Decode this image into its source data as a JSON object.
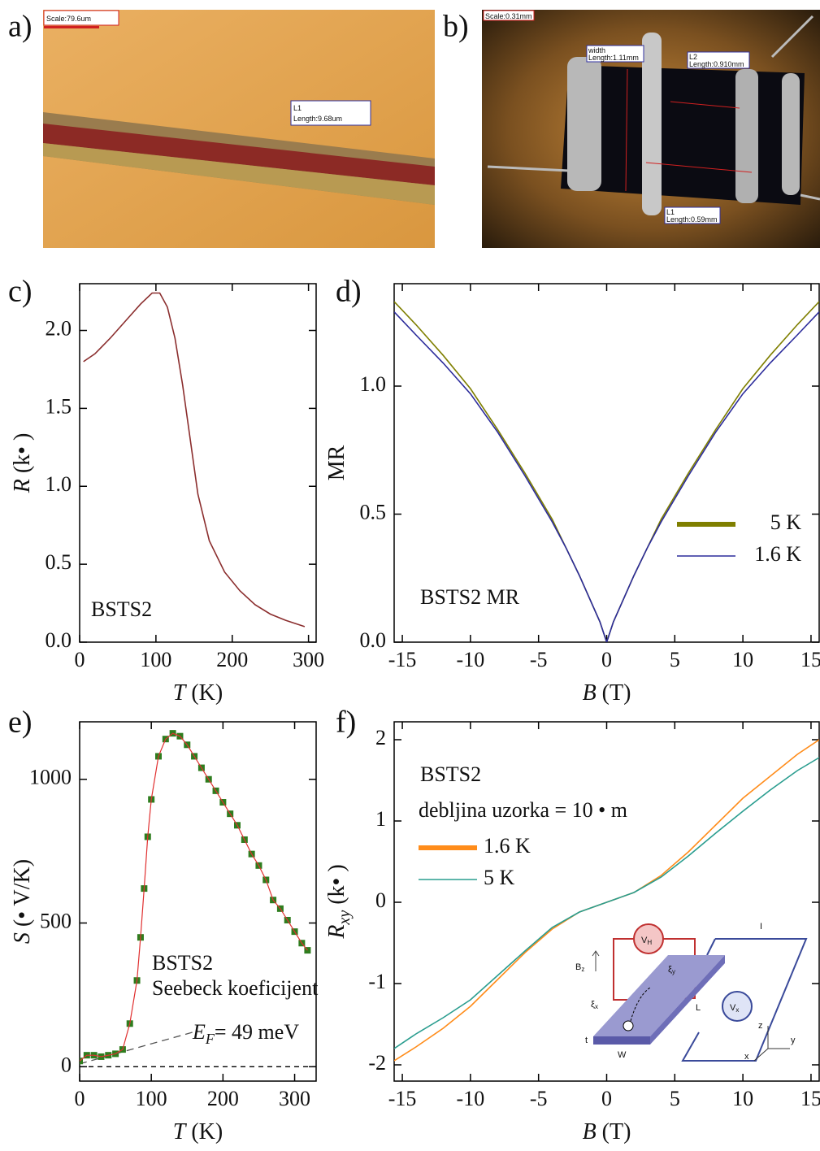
{
  "photos": [
    {
      "panel_label": "a)",
      "labels": [
        "Scale:79.6um",
        "L1",
        "Length:9.68um"
      ]
    },
    {
      "panel_label": "b)",
      "labels": [
        "Scale:0.31mm",
        "width",
        "Length:1.11mm",
        "L2",
        "Length:0.910mm",
        "L1",
        "Length:0.59mm"
      ]
    }
  ],
  "chart_data": [
    {
      "type": "line",
      "panel_label": "c)",
      "x_label": [
        "T",
        " (K)"
      ],
      "y_label": [
        "R",
        " (k• )"
      ],
      "xlim": [
        0,
        310
      ],
      "ylim": [
        0,
        2.3
      ],
      "xticks": [
        0,
        100,
        200,
        300
      ],
      "yticks": [
        {
          "value": 0,
          "label": "0.0"
        },
        {
          "value": 0.5,
          "label": "0.5"
        },
        {
          "value": 1,
          "label": "1.0"
        },
        {
          "value": 1.5,
          "label": "1.5"
        },
        {
          "value": 2,
          "label": "2.0"
        }
      ],
      "x": [
        5,
        20,
        40,
        60,
        80,
        95,
        105,
        115,
        125,
        135,
        145,
        155,
        170,
        190,
        210,
        230,
        250,
        270,
        295
      ],
      "series": [
        {
          "color": "#8b2e2e",
          "values": [
            1.8,
            1.85,
            1.95,
            2.06,
            2.17,
            2.24,
            2.24,
            2.15,
            1.95,
            1.65,
            1.3,
            0.95,
            0.65,
            0.45,
            0.33,
            0.24,
            0.18,
            0.14,
            0.1
          ]
        }
      ],
      "annotations": [
        "BSTS2"
      ]
    },
    {
      "type": "line",
      "panel_label": "d)",
      "x_label": [
        "B",
        " (T)"
      ],
      "y_label": [
        "MR"
      ],
      "xlim": [
        -15.6,
        15.6
      ],
      "ylim": [
        0,
        1.4
      ],
      "xticks": [
        -15,
        -10,
        -5,
        0,
        5,
        10,
        15
      ],
      "yticks": [
        {
          "value": 0,
          "label": "0.0"
        },
        {
          "value": 0.5,
          "label": "0.5"
        },
        {
          "value": 1,
          "label": "1.0"
        }
      ],
      "x": [
        -15.6,
        -14,
        -12,
        -10,
        -8,
        -6,
        -5,
        -4,
        -3,
        -2,
        -1,
        -0.5,
        0,
        0.5,
        1,
        2,
        3,
        4,
        5,
        6,
        8,
        10,
        12,
        14,
        15.6
      ],
      "series": [
        {
          "name": "5 K",
          "color": "#7f7f00",
          "values": [
            1.33,
            1.24,
            1.12,
            0.99,
            0.83,
            0.66,
            0.57,
            0.48,
            0.37,
            0.26,
            0.14,
            0.08,
            0,
            0.08,
            0.14,
            0.26,
            0.37,
            0.48,
            0.57,
            0.66,
            0.83,
            0.99,
            1.12,
            1.24,
            1.33
          ]
        },
        {
          "name": "1.6 K",
          "color": "#2b2b9b",
          "values": [
            1.29,
            1.2,
            1.09,
            0.97,
            0.82,
            0.65,
            0.56,
            0.47,
            0.37,
            0.26,
            0.14,
            0.08,
            0,
            0.08,
            0.14,
            0.26,
            0.37,
            0.47,
            0.56,
            0.65,
            0.82,
            0.97,
            1.09,
            1.2,
            1.29
          ]
        }
      ],
      "legend": "right",
      "annotations": [
        "BSTS2 MR"
      ]
    },
    {
      "type": "scatter",
      "panel_label": "e)",
      "x_label": [
        "T",
        " (K)"
      ],
      "y_label": [
        "S",
        " (• V/K)"
      ],
      "xlim": [
        0,
        330
      ],
      "ylim": [
        -50,
        1200
      ],
      "xticks": [
        0,
        100,
        200,
        300
      ],
      "yticks": [
        0,
        500,
        1000
      ],
      "hline": 0,
      "fit_line": {
        "x": [
          0,
          165
        ],
        "y": [
          10,
          125
        ]
      },
      "series": [
        {
          "color": "#2e7d1e",
          "line_color": "#e03030",
          "x": [
            0,
            10,
            20,
            30,
            40,
            50,
            60,
            70,
            80,
            85,
            90,
            95,
            100,
            110,
            120,
            130,
            140,
            150,
            160,
            170,
            180,
            190,
            200,
            210,
            220,
            230,
            240,
            250,
            260,
            270,
            280,
            290,
            300,
            310,
            318
          ],
          "values": [
            20,
            40,
            40,
            35,
            40,
            45,
            60,
            150,
            300,
            450,
            620,
            800,
            930,
            1080,
            1140,
            1160,
            1150,
            1120,
            1080,
            1040,
            1000,
            960,
            920,
            880,
            840,
            790,
            740,
            700,
            650,
            580,
            550,
            510,
            470,
            430,
            405
          ]
        }
      ],
      "annotations": [
        "BSTS2",
        "Seebeck koeficijent",
        {
          "text": "E",
          "sub": "F",
          "rest": "= 49 meV"
        }
      ]
    },
    {
      "type": "line",
      "panel_label": "f)",
      "x_label": [
        "B",
        " (T)"
      ],
      "y_label": [
        "R",
        "xy",
        " (k• )"
      ],
      "xlim": [
        -15.6,
        15.6
      ],
      "ylim": [
        -2.2,
        2.22
      ],
      "xticks": [
        -15,
        -10,
        -5,
        0,
        5,
        10,
        15
      ],
      "yticks": [
        -2,
        -1,
        0,
        1,
        2
      ],
      "x": [
        -15.6,
        -14,
        -12,
        -10,
        -8,
        -6,
        -4,
        -2,
        0,
        2,
        4,
        6,
        8,
        10,
        12,
        14,
        15.6
      ],
      "series": [
        {
          "name": "1.6 K",
          "color": "#ff8c1a",
          "values": [
            -1.95,
            -1.78,
            -1.55,
            -1.28,
            -0.95,
            -0.62,
            -0.33,
            -0.12,
            0,
            0.12,
            0.33,
            0.62,
            0.95,
            1.28,
            1.55,
            1.82,
            2.0
          ]
        },
        {
          "name": "5 K",
          "color": "#2a9d8f",
          "values": [
            -1.8,
            -1.62,
            -1.42,
            -1.2,
            -0.9,
            -0.6,
            -0.31,
            -0.12,
            0,
            0.12,
            0.31,
            0.57,
            0.85,
            1.12,
            1.38,
            1.62,
            1.78
          ]
        }
      ],
      "legend": "upper-left",
      "annotations": [
        "BSTS2",
        "debljina uzorka = 10 • m"
      ],
      "inset": {
        "vh": [
          "V",
          "H"
        ],
        "vx": [
          "V",
          "x"
        ],
        "current": "I",
        "bz": [
          "B",
          "z"
        ],
        "ey": [
          "ξ",
          "y"
        ],
        "ex": [
          "ξ",
          "x"
        ],
        "length": "L",
        "width": "W",
        "thickness": "t",
        "axes": [
          "z",
          "y",
          "x"
        ]
      }
    }
  ]
}
